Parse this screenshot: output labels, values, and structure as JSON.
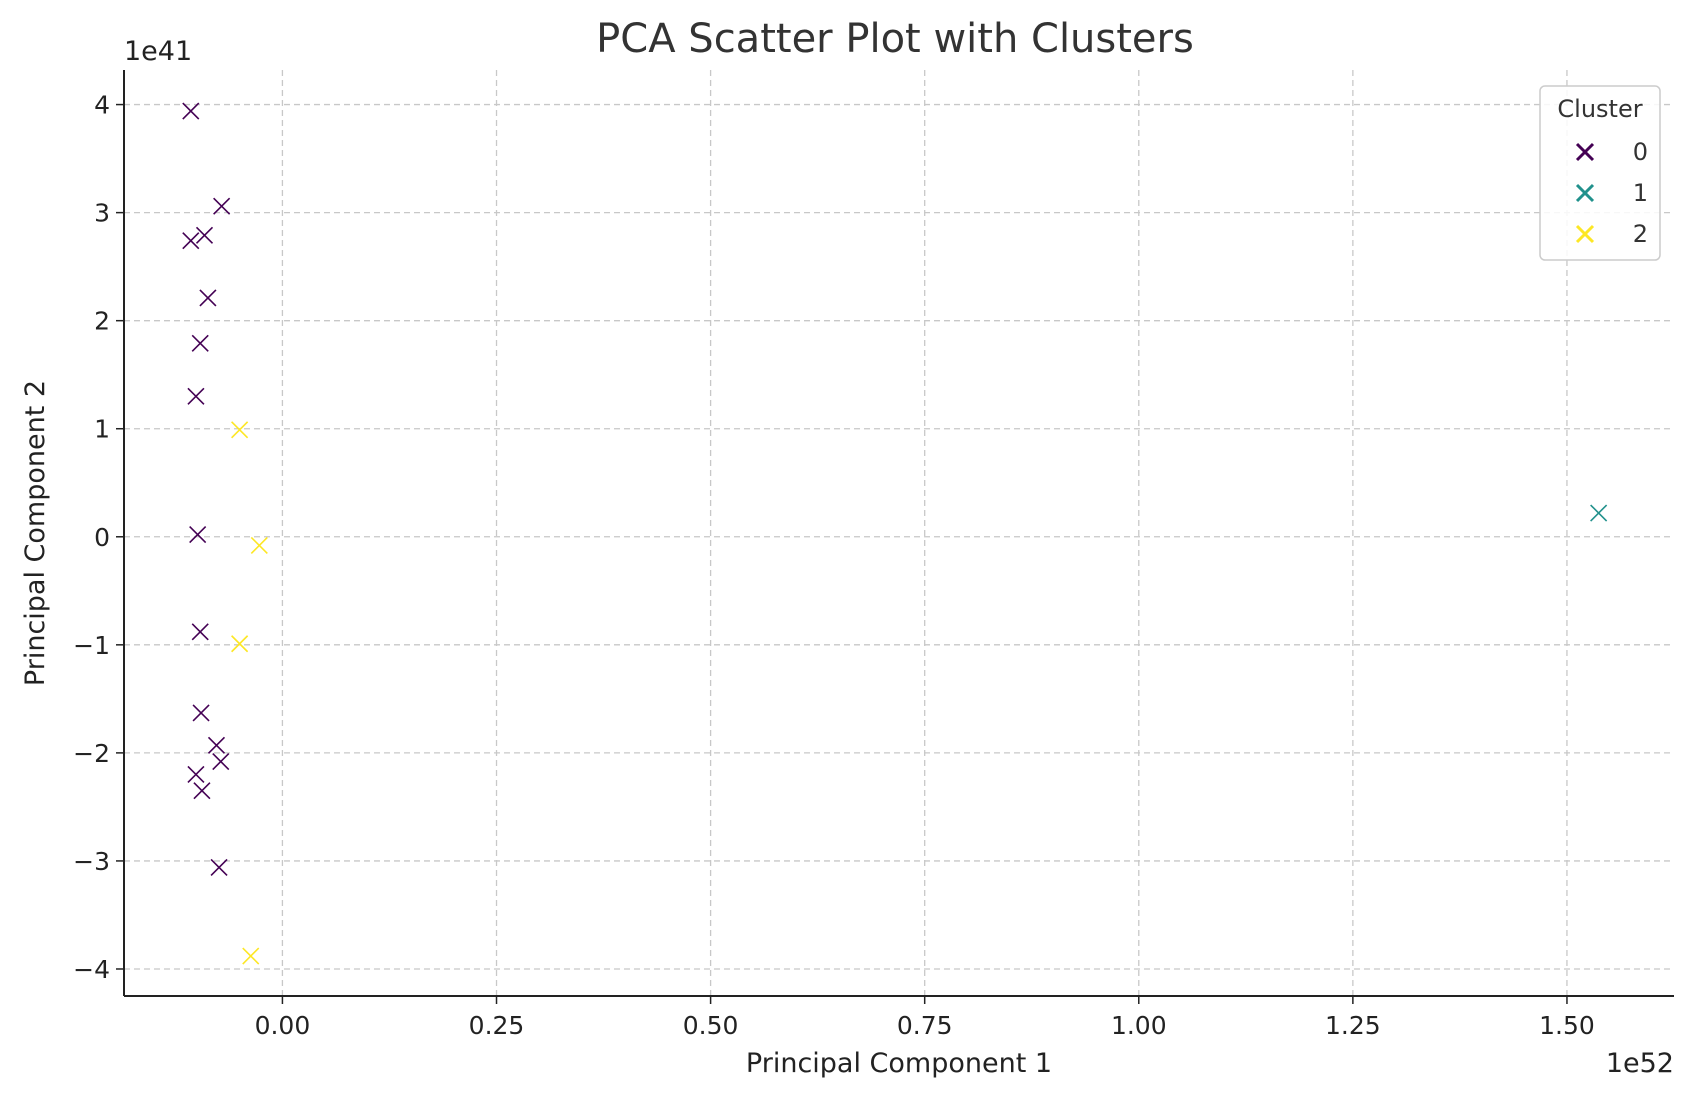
{
  "chart_data": {
    "type": "scatter",
    "title": "PCA Scatter Plot with Clusters",
    "xlabel": "Principal Component 1",
    "ylabel": "Principal Component 2",
    "x_offset_label": "1e52",
    "y_offset_label": "1e41",
    "xlim": [
      -0.185,
      1.625
    ],
    "ylim": [
      -4.25,
      4.32
    ],
    "x_ticks": [
      0.0,
      0.25,
      0.5,
      0.75,
      1.0,
      1.25,
      1.5
    ],
    "x_tick_labels": [
      "0.00",
      "0.25",
      "0.50",
      "0.75",
      "1.00",
      "1.25",
      "1.50"
    ],
    "y_ticks": [
      -4,
      -3,
      -2,
      -1,
      0,
      1,
      2,
      3,
      4
    ],
    "y_tick_labels": [
      "−4",
      "−3",
      "−2",
      "−1",
      "0",
      "1",
      "2",
      "3",
      "4"
    ],
    "grid": true,
    "marker": "x",
    "legend": {
      "title": "Cluster",
      "placement": "top-right"
    },
    "series": [
      {
        "name": "0",
        "color": "#440154",
        "points": [
          [
            -0.107,
            3.94
          ],
          [
            -0.071,
            3.06
          ],
          [
            -0.091,
            2.79
          ],
          [
            -0.107,
            2.74
          ],
          [
            -0.087,
            2.21
          ],
          [
            -0.096,
            1.79
          ],
          [
            -0.101,
            1.3
          ],
          [
            -0.099,
            0.02
          ],
          [
            -0.096,
            -0.88
          ],
          [
            -0.095,
            -1.63
          ],
          [
            -0.077,
            -1.93
          ],
          [
            -0.072,
            -2.08
          ],
          [
            -0.101,
            -2.2
          ],
          [
            -0.094,
            -2.35
          ],
          [
            -0.074,
            -3.06
          ]
        ]
      },
      {
        "name": "1",
        "color": "#21918c",
        "points": [
          [
            1.537,
            0.22
          ]
        ]
      },
      {
        "name": "2",
        "color": "#fde725",
        "points": [
          [
            -0.05,
            0.99
          ],
          [
            -0.027,
            -0.08
          ],
          [
            -0.05,
            -0.99
          ],
          [
            -0.037,
            -3.88
          ]
        ]
      }
    ]
  }
}
